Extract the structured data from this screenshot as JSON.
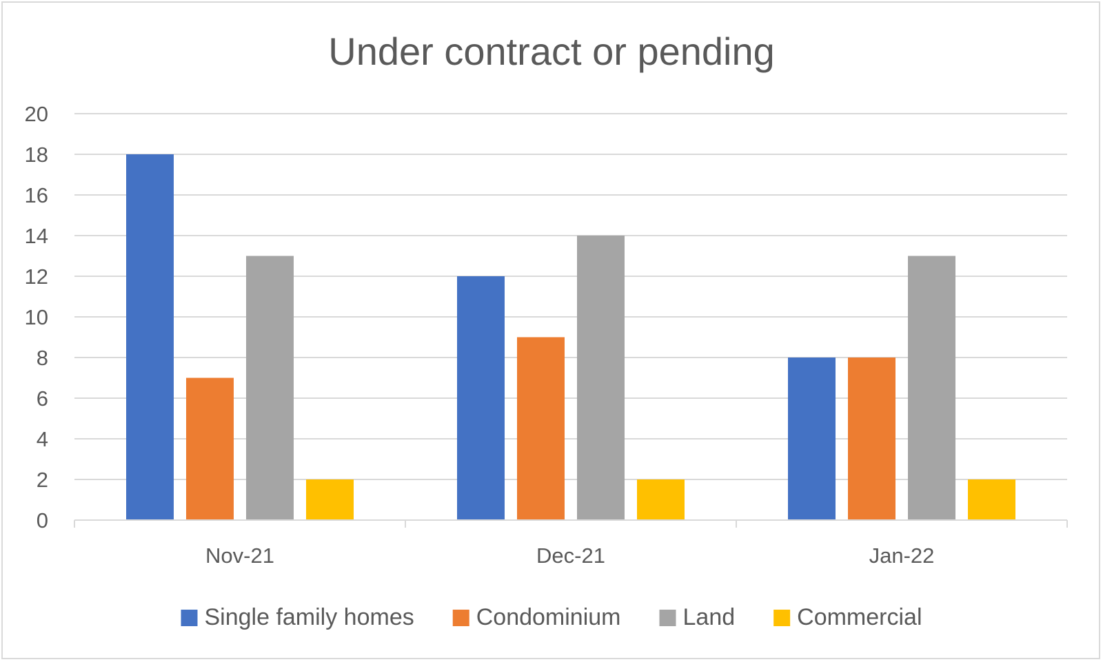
{
  "chart_data": {
    "type": "bar",
    "title": "Under contract or pending",
    "xlabel": "",
    "ylabel": "",
    "categories": [
      "Nov-21",
      "Dec-21",
      "Jan-22"
    ],
    "series": [
      {
        "name": "Single family homes",
        "values": [
          18,
          12,
          8
        ],
        "color": "#4472c4"
      },
      {
        "name": "Condominium",
        "values": [
          7,
          9,
          8
        ],
        "color": "#ed7d31"
      },
      {
        "name": "Land",
        "values": [
          13,
          14,
          13
        ],
        "color": "#a5a5a5"
      },
      {
        "name": "Commercial",
        "values": [
          2,
          2,
          2
        ],
        "color": "#ffc000"
      }
    ],
    "ylim": [
      0,
      20
    ],
    "yticks": [
      0,
      2,
      4,
      6,
      8,
      10,
      12,
      14,
      16,
      18,
      20
    ],
    "grid": true,
    "legend_position": "bottom"
  }
}
